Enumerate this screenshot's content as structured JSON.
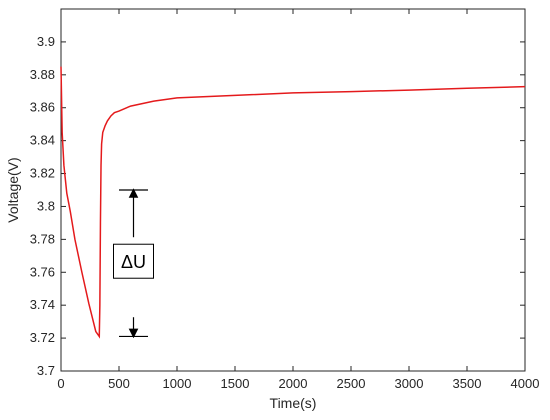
{
  "chart_data": {
    "type": "line",
    "title": "",
    "xlabel": "Time(s)",
    "ylabel": "Voltage(V)",
    "xlim": [
      0,
      4000
    ],
    "ylim": [
      3.7,
      3.92
    ],
    "xticks": [
      0,
      500,
      1000,
      1500,
      2000,
      2500,
      3000,
      3500,
      4000
    ],
    "xtick_labels": [
      "0",
      "500",
      "1000",
      "1500",
      "2000",
      "2500",
      "3000",
      "3500",
      "4000"
    ],
    "yticks": [
      3.7,
      3.72,
      3.74,
      3.76,
      3.78,
      3.8,
      3.82,
      3.84,
      3.86,
      3.88,
      3.9
    ],
    "ytick_labels": [
      "3.7",
      "3.72",
      "3.74",
      "3.76",
      "3.78",
      "3.8",
      "3.82",
      "3.84",
      "3.86",
      "3.88",
      "3.9"
    ],
    "grid": false,
    "series": [
      {
        "color": "#e41a1c",
        "x": [
          0,
          10,
          25,
          50,
          80,
          120,
          180,
          240,
          300,
          330,
          335,
          340,
          345,
          350,
          360,
          380,
          400,
          430,
          460,
          500,
          600,
          800,
          1000,
          1500,
          2000,
          2500,
          3000,
          3500,
          4000
        ],
        "y": [
          3.885,
          3.845,
          3.825,
          3.808,
          3.797,
          3.78,
          3.76,
          3.741,
          3.724,
          3.721,
          3.74,
          3.79,
          3.825,
          3.838,
          3.845,
          3.849,
          3.852,
          3.855,
          3.857,
          3.858,
          3.861,
          3.864,
          3.866,
          3.8675,
          3.869,
          3.8698,
          3.8707,
          3.8718,
          3.8728
        ]
      }
    ],
    "annotation": {
      "text": "ΔU",
      "upper_value": 3.81,
      "lower_value": 3.721,
      "bar_x_range": [
        500,
        750
      ],
      "arrow_x": 625
    }
  }
}
